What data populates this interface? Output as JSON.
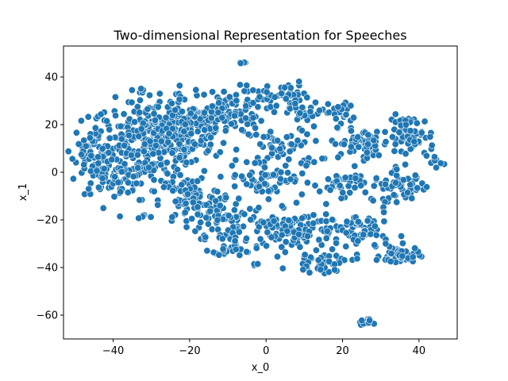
{
  "chart_data": {
    "type": "scatter",
    "title": "Two-dimensional Representation for Speeches",
    "xlabel": "x_0",
    "ylabel": "x_1",
    "xlim": [
      -53,
      50
    ],
    "ylim": [
      -70,
      53
    ],
    "xticks": [
      -40,
      -20,
      0,
      20,
      40
    ],
    "yticks": [
      -60,
      -40,
      -20,
      0,
      20,
      40
    ],
    "xtick_labels": [
      "−40",
      "−20",
      "0",
      "20",
      "40"
    ],
    "ytick_labels": [
      "−60",
      "−40",
      "−20",
      "0",
      "20",
      "40"
    ],
    "grid": false,
    "legend": "none",
    "marker_color": "#1f77b4",
    "marker_edge_color": "#ffffff",
    "clusters": [
      {
        "cx": -30,
        "cy": 12,
        "sx": 8.0,
        "sy": 9.0,
        "n": 360
      },
      {
        "cx": -20,
        "cy": 20,
        "sx": 6.0,
        "sy": 5.0,
        "n": 90
      },
      {
        "cx": -45,
        "cy": 10,
        "sx": 3.0,
        "sy": 6.0,
        "n": 45
      },
      {
        "cx": -40,
        "cy": -3,
        "sx": 4.5,
        "sy": 3.0,
        "n": 55
      },
      {
        "cx": -20,
        "cy": -12,
        "sx": 4.0,
        "sy": 5.0,
        "n": 75
      },
      {
        "cx": -10,
        "cy": -20,
        "sx": 5.0,
        "sy": 5.0,
        "n": 70
      },
      {
        "cx": -8,
        "cy": -30,
        "sx": 3.0,
        "sy": 2.5,
        "n": 35
      },
      {
        "cx": -10,
        "cy": 25,
        "sx": 5.0,
        "sy": 5.0,
        "n": 80
      },
      {
        "cx": 3,
        "cy": 33,
        "sx": 4.0,
        "sy": 2.5,
        "n": 40
      },
      {
        "cx": 10,
        "cy": 25,
        "sx": 3.5,
        "sy": 2.0,
        "n": 30
      },
      {
        "cx": 5,
        "cy": 10,
        "sx": 4.5,
        "sy": 4.5,
        "n": 50
      },
      {
        "cx": 20,
        "cy": 25,
        "sx": 2.0,
        "sy": 3.0,
        "n": 20
      },
      {
        "cx": 25,
        "cy": 12,
        "sx": 4.0,
        "sy": 3.0,
        "n": 65
      },
      {
        "cx": 38,
        "cy": 15,
        "sx": 3.0,
        "sy": 4.5,
        "n": 65
      },
      {
        "cx": 44,
        "cy": 5,
        "sx": 1.0,
        "sy": 1.5,
        "n": 10
      },
      {
        "cx": 35,
        "cy": -6,
        "sx": 3.5,
        "sy": 3.0,
        "n": 55
      },
      {
        "cx": 20,
        "cy": -5,
        "sx": 3.0,
        "sy": 2.5,
        "n": 40
      },
      {
        "cx": 10,
        "cy": -25,
        "sx": 5.0,
        "sy": 4.5,
        "n": 85
      },
      {
        "cx": 25,
        "cy": -25,
        "sx": 3.5,
        "sy": 4.5,
        "n": 60
      },
      {
        "cx": 35,
        "cy": -35,
        "sx": 2.5,
        "sy": 2.0,
        "n": 50
      },
      {
        "cx": 15,
        "cy": -38,
        "sx": 4.0,
        "sy": 2.0,
        "n": 40
      },
      {
        "cx": 0,
        "cy": -2,
        "sx": 5.0,
        "sy": 4.0,
        "n": 60
      },
      {
        "cx": 0,
        "cy": -25,
        "sx": 3.0,
        "sy": 4.0,
        "n": 25
      },
      {
        "cx": -6,
        "cy": 46,
        "sx": 0.8,
        "sy": 0.5,
        "n": 6
      },
      {
        "cx": 26,
        "cy": -63,
        "sx": 0.8,
        "sy": 0.6,
        "n": 18
      },
      {
        "cx": -33,
        "cy": 34,
        "sx": 0.5,
        "sy": 0.6,
        "n": 5
      },
      {
        "cx": -32,
        "cy": -19,
        "sx": 1.0,
        "sy": 0.6,
        "n": 6
      },
      {
        "cx": -3,
        "cy": -39,
        "sx": 0.8,
        "sy": 0.6,
        "n": 4
      }
    ]
  }
}
